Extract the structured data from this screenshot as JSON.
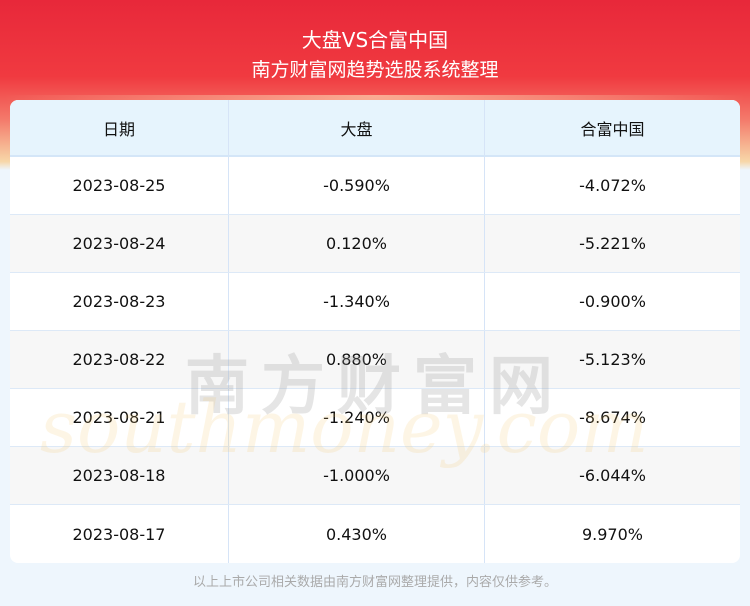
{
  "header": {
    "title": "大盘VS合富中国",
    "subtitle": "南方财富网趋势选股系统整理"
  },
  "table": {
    "columns": [
      "日期",
      "大盘",
      "合富中国"
    ],
    "rows": [
      [
        "2023-08-25",
        "-0.590%",
        "-4.072%"
      ],
      [
        "2023-08-24",
        "0.120%",
        "-5.221%"
      ],
      [
        "2023-08-23",
        "-1.340%",
        "-0.900%"
      ],
      [
        "2023-08-22",
        "0.880%",
        "-5.123%"
      ],
      [
        "2023-08-21",
        "-1.240%",
        "-8.674%"
      ],
      [
        "2023-08-18",
        "-1.000%",
        "-6.044%"
      ],
      [
        "2023-08-17",
        "0.430%",
        "9.970%"
      ]
    ]
  },
  "watermark": {
    "cn": "南方财富网",
    "en": "southmoney.com"
  },
  "footer": "以上上市公司相关数据由南方财富网整理提供，内容仅供参考。"
}
